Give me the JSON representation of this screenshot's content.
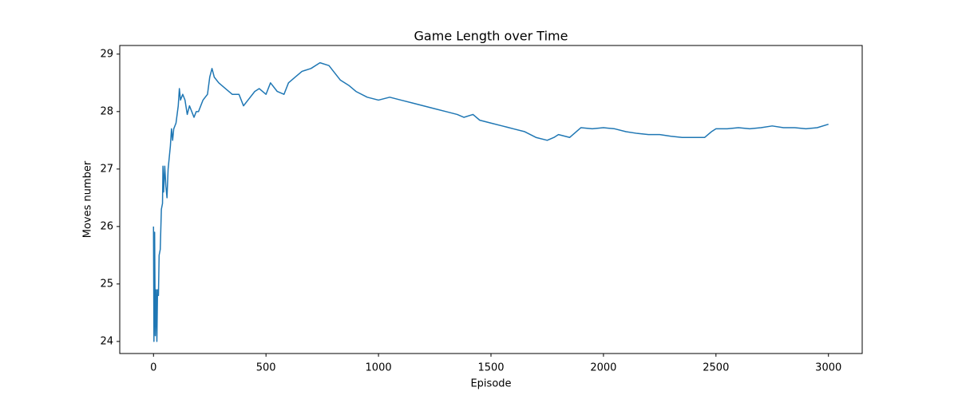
{
  "chart_data": {
    "type": "line",
    "title": "Game Length over Time",
    "x_label": "Episode",
    "y_label": "Moves number",
    "x": [
      0,
      2,
      5,
      8,
      12,
      15,
      18,
      22,
      25,
      30,
      35,
      40,
      42,
      45,
      50,
      55,
      60,
      65,
      70,
      75,
      80,
      85,
      90,
      100,
      110,
      115,
      120,
      130,
      140,
      150,
      160,
      170,
      180,
      190,
      200,
      220,
      240,
      250,
      260,
      270,
      290,
      320,
      350,
      380,
      400,
      420,
      450,
      470,
      500,
      520,
      550,
      580,
      600,
      630,
      660,
      700,
      740,
      780,
      800,
      830,
      870,
      900,
      950,
      1000,
      1050,
      1100,
      1150,
      1200,
      1250,
      1300,
      1350,
      1380,
      1420,
      1450,
      1500,
      1550,
      1600,
      1650,
      1700,
      1750,
      1780,
      1800,
      1850,
      1900,
      1950,
      2000,
      2050,
      2100,
      2150,
      2200,
      2250,
      2300,
      2350,
      2400,
      2450,
      2480,
      2500,
      2550,
      2600,
      2650,
      2700,
      2750,
      2800,
      2850,
      2900,
      2950,
      3000
    ],
    "series": [
      {
        "name": "Moves number",
        "color": "#1f77b4",
        "values": [
          26.0,
          24.0,
          25.9,
          24.1,
          24.9,
          24.0,
          24.9,
          24.8,
          25.5,
          25.6,
          26.3,
          26.4,
          27.05,
          26.6,
          27.05,
          26.7,
          26.5,
          27.0,
          27.2,
          27.4,
          27.7,
          27.5,
          27.7,
          27.8,
          28.1,
          28.4,
          28.2,
          28.3,
          28.2,
          27.95,
          28.1,
          28.0,
          27.9,
          28.0,
          28.0,
          28.2,
          28.3,
          28.6,
          28.75,
          28.6,
          28.5,
          28.4,
          28.3,
          28.3,
          28.1,
          28.2,
          28.35,
          28.4,
          28.3,
          28.5,
          28.35,
          28.3,
          28.5,
          28.6,
          28.7,
          28.75,
          28.85,
          28.8,
          28.7,
          28.55,
          28.45,
          28.35,
          28.25,
          28.2,
          28.25,
          28.2,
          28.15,
          28.1,
          28.05,
          28.0,
          27.95,
          27.9,
          27.95,
          27.85,
          27.8,
          27.75,
          27.7,
          27.65,
          27.55,
          27.5,
          27.55,
          27.6,
          27.55,
          27.72,
          27.7,
          27.72,
          27.7,
          27.65,
          27.62,
          27.6,
          27.6,
          27.57,
          27.55,
          27.55,
          27.55,
          27.65,
          27.7,
          27.7,
          27.72,
          27.7,
          27.72,
          27.75,
          27.72,
          27.72,
          27.7,
          27.72,
          27.78
        ]
      }
    ],
    "xlim": [
      -150,
      3150
    ],
    "ylim": [
      23.79,
      29.15
    ],
    "xticks": [
      0,
      500,
      1000,
      1500,
      2000,
      2500,
      3000
    ],
    "yticks": [
      24,
      25,
      26,
      27,
      28,
      29
    ],
    "grid": false
  }
}
